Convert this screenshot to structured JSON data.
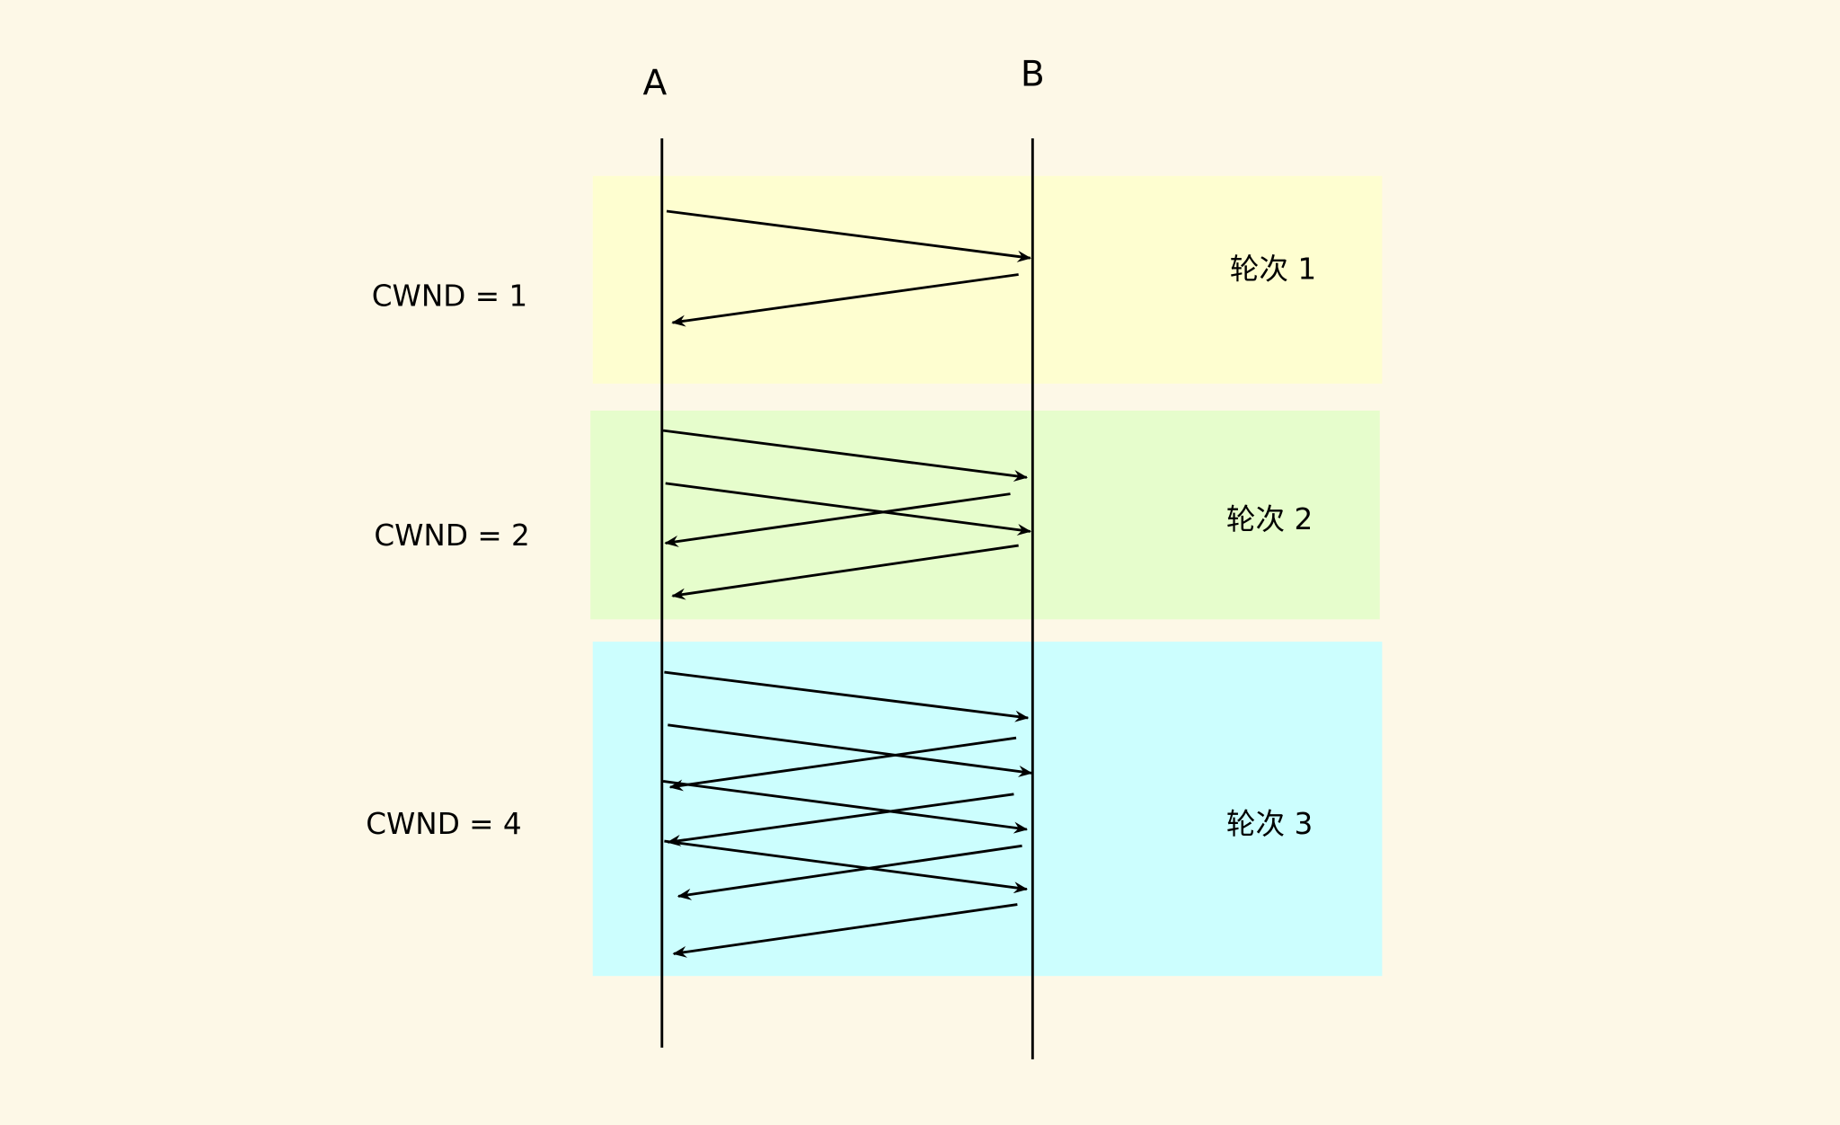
{
  "participants": {
    "a": "A",
    "b": "B"
  },
  "rounds": [
    {
      "cwnd_label": "CWND = 1",
      "round_label": "轮次 1",
      "color": "#fefed0"
    },
    {
      "cwnd_label": "CWND = 2",
      "round_label": "轮次 2",
      "color": "#e6fdcc"
    },
    {
      "cwnd_label": "CWND = 4",
      "round_label": "轮次 3",
      "color": "#ccfefe"
    }
  ],
  "colors": {
    "background": "#fdf8e7",
    "lines": "#000000"
  }
}
